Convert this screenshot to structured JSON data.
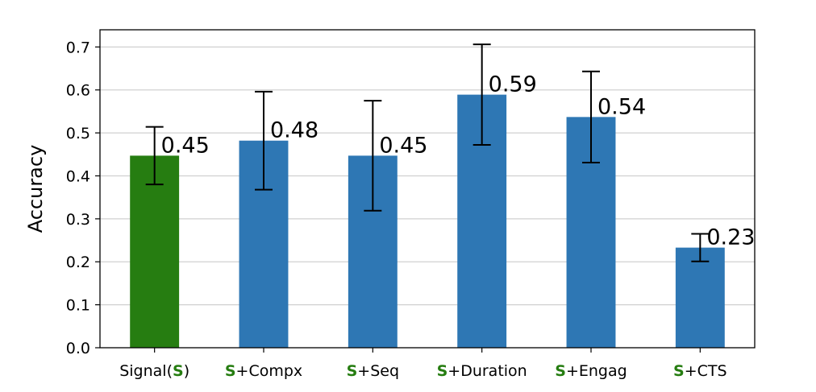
{
  "chart_data": {
    "type": "bar",
    "ylabel": "Accuracy",
    "ylim": [
      0,
      0.74
    ],
    "yticks": [
      "0.0",
      "0.1",
      "0.2",
      "0.3",
      "0.4",
      "0.5",
      "0.6",
      "0.7"
    ],
    "grid": "horizontal",
    "categories": [
      {
        "prefix": "",
        "text": "Signal(",
        "highlight": "S",
        "suffix": ")"
      },
      {
        "prefix": "S",
        "text": "+Compx",
        "highlight": "",
        "suffix": ""
      },
      {
        "prefix": "S",
        "text": "+Seq",
        "highlight": "",
        "suffix": ""
      },
      {
        "prefix": "S",
        "text": "+Duration",
        "highlight": "",
        "suffix": ""
      },
      {
        "prefix": "S",
        "text": "+Engag",
        "highlight": "",
        "suffix": ""
      },
      {
        "prefix": "S",
        "text": "+CTS",
        "highlight": "",
        "suffix": ""
      }
    ],
    "values": [
      0.447,
      0.482,
      0.447,
      0.589,
      0.537,
      0.233
    ],
    "error": [
      0.067,
      0.114,
      0.128,
      0.117,
      0.106,
      0.032
    ],
    "labels": [
      "0.45",
      "0.48",
      "0.45",
      "0.59",
      "0.54",
      "0.23"
    ],
    "colors": [
      "#267d11",
      "#2e77b4",
      "#2e77b4",
      "#2e77b4",
      "#2e77b4",
      "#2e77b4"
    ],
    "highlight_color": "#267d11"
  }
}
